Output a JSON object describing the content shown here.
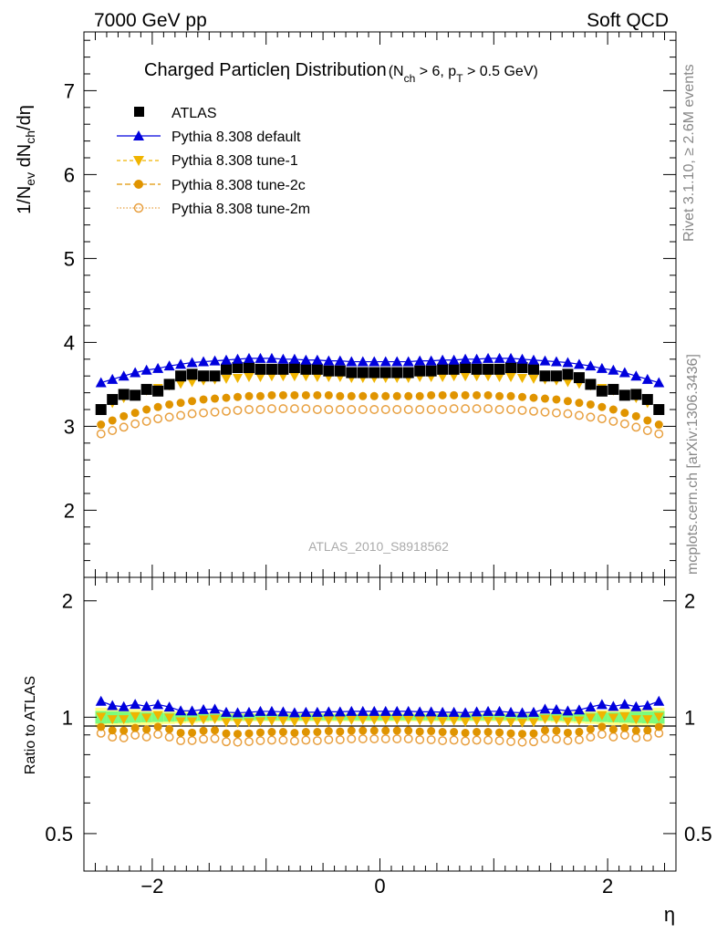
{
  "header": {
    "left": "7000 GeV pp",
    "right": "Soft QCD"
  },
  "title": {
    "main": "Charged Particle",
    "eta": "η",
    "distribution": " Distribution",
    "sub_open": "(N",
    "sub_ch": "ch",
    "sub_mid": " > 6, p",
    "sub_t": "T",
    "sub_close": " > 0.5 GeV)"
  },
  "ylabel_top": {
    "a": "1/N",
    "ev": "ev",
    "b": " dN",
    "ch": "ch",
    "c": "/dη"
  },
  "ylabel_bottom": "Ratio to ATLAS",
  "xlabel": "η",
  "side_text": {
    "rivet": "Rivet 3.1.10, ≥ 2.6M events",
    "mcplots": "mcplots.cern.ch [arXiv:1306.3436]"
  },
  "watermark": "ATLAS_2010_S8918562",
  "ticks": {
    "top_y": [
      "2",
      "3",
      "4",
      "5",
      "6",
      "7"
    ],
    "bottom_y_left": [
      "0.5",
      "1",
      "2"
    ],
    "bottom_y_right": [
      "0.5",
      "1",
      "2"
    ],
    "x": [
      "−2",
      "0",
      "2"
    ]
  },
  "colors": {
    "atlas": "#000000",
    "default": "#0000dd",
    "tune1": "#f0b400",
    "tune2c": "#e09400",
    "tune2m": "#e8a040",
    "band_green": "#7cfc7c",
    "band_yellow": "#ffff88"
  },
  "chart_data": {
    "type": "scatter",
    "xlabel": "η",
    "ylabel": "1/N_ev dN_ch/dη",
    "xlim": [
      -2.6,
      2.6
    ],
    "ylim": [
      1.2,
      7.7
    ],
    "ratio_ylim_log": [
      0.4,
      2.3
    ],
    "x": [
      -2.45,
      -2.35,
      -2.25,
      -2.15,
      -2.05,
      -1.95,
      -1.85,
      -1.75,
      -1.65,
      -1.55,
      -1.45,
      -1.35,
      -1.25,
      -1.15,
      -1.05,
      -0.95,
      -0.85,
      -0.75,
      -0.65,
      -0.55,
      -0.45,
      -0.35,
      -0.25,
      -0.15,
      -0.05,
      0.05,
      0.15,
      0.25,
      0.35,
      0.45,
      0.55,
      0.65,
      0.75,
      0.85,
      0.95,
      1.05,
      1.15,
      1.25,
      1.35,
      1.45,
      1.55,
      1.65,
      1.75,
      1.85,
      1.95,
      2.05,
      2.15,
      2.25,
      2.35,
      2.45
    ],
    "legend": [
      "ATLAS",
      "Pythia 8.308 default",
      "Pythia 8.308 tune-1",
      "Pythia 8.308 tune-2c",
      "Pythia 8.308 tune-2m"
    ],
    "series": [
      {
        "name": "ATLAS",
        "marker": "square",
        "values": [
          3.2,
          3.32,
          3.38,
          3.37,
          3.44,
          3.42,
          3.5,
          3.6,
          3.62,
          3.6,
          3.6,
          3.68,
          3.7,
          3.7,
          3.68,
          3.68,
          3.68,
          3.7,
          3.68,
          3.68,
          3.66,
          3.66,
          3.64,
          3.64,
          3.64,
          3.64,
          3.64,
          3.64,
          3.66,
          3.66,
          3.68,
          3.68,
          3.7,
          3.68,
          3.68,
          3.68,
          3.7,
          3.7,
          3.68,
          3.6,
          3.6,
          3.62,
          3.58,
          3.5,
          3.42,
          3.44,
          3.37,
          3.38,
          3.32,
          3.2
        ]
      },
      {
        "name": "Pythia 8.308 default",
        "marker": "triangle-up",
        "line": true,
        "values": [
          3.52,
          3.56,
          3.6,
          3.64,
          3.67,
          3.69,
          3.72,
          3.74,
          3.76,
          3.77,
          3.78,
          3.79,
          3.8,
          3.81,
          3.81,
          3.81,
          3.8,
          3.8,
          3.79,
          3.79,
          3.78,
          3.78,
          3.77,
          3.77,
          3.77,
          3.77,
          3.77,
          3.77,
          3.78,
          3.78,
          3.79,
          3.79,
          3.8,
          3.8,
          3.81,
          3.81,
          3.81,
          3.8,
          3.79,
          3.78,
          3.77,
          3.76,
          3.74,
          3.72,
          3.69,
          3.67,
          3.64,
          3.6,
          3.56,
          3.52
        ]
      },
      {
        "name": "Pythia 8.308 tune-1",
        "marker": "triangle-down",
        "values": [
          3.2,
          3.27,
          3.33,
          3.38,
          3.42,
          3.45,
          3.48,
          3.5,
          3.52,
          3.54,
          3.55,
          3.56,
          3.57,
          3.58,
          3.58,
          3.59,
          3.59,
          3.59,
          3.59,
          3.58,
          3.58,
          3.58,
          3.57,
          3.57,
          3.57,
          3.57,
          3.57,
          3.57,
          3.58,
          3.58,
          3.58,
          3.59,
          3.59,
          3.59,
          3.59,
          3.58,
          3.58,
          3.57,
          3.56,
          3.55,
          3.54,
          3.52,
          3.5,
          3.48,
          3.45,
          3.42,
          3.38,
          3.33,
          3.27,
          3.2
        ]
      },
      {
        "name": "Pythia 8.308 tune-2c",
        "marker": "circle",
        "values": [
          3.02,
          3.07,
          3.12,
          3.16,
          3.2,
          3.23,
          3.26,
          3.28,
          3.3,
          3.32,
          3.33,
          3.34,
          3.35,
          3.36,
          3.36,
          3.37,
          3.37,
          3.37,
          3.37,
          3.37,
          3.37,
          3.36,
          3.36,
          3.36,
          3.36,
          3.36,
          3.36,
          3.36,
          3.36,
          3.37,
          3.37,
          3.37,
          3.37,
          3.37,
          3.37,
          3.36,
          3.36,
          3.35,
          3.34,
          3.33,
          3.32,
          3.3,
          3.28,
          3.26,
          3.23,
          3.2,
          3.16,
          3.12,
          3.07,
          3.02
        ]
      },
      {
        "name": "Pythia 8.308 tune-2m",
        "marker": "circle-open",
        "values": [
          2.91,
          2.95,
          2.99,
          3.03,
          3.06,
          3.09,
          3.11,
          3.13,
          3.15,
          3.16,
          3.17,
          3.18,
          3.19,
          3.2,
          3.2,
          3.21,
          3.21,
          3.21,
          3.21,
          3.2,
          3.2,
          3.2,
          3.2,
          3.2,
          3.2,
          3.2,
          3.2,
          3.2,
          3.2,
          3.2,
          3.2,
          3.21,
          3.21,
          3.21,
          3.21,
          3.2,
          3.2,
          3.19,
          3.18,
          3.17,
          3.16,
          3.15,
          3.13,
          3.11,
          3.09,
          3.06,
          3.03,
          2.99,
          2.95,
          2.91
        ]
      }
    ]
  }
}
